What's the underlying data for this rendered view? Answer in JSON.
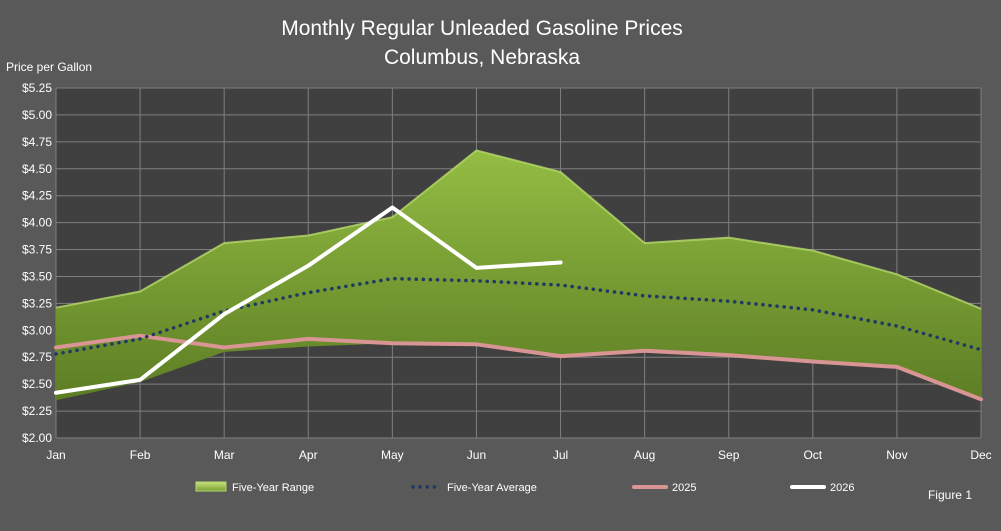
{
  "chart_data": {
    "type": "area",
    "title": "Monthly Regular Unleaded Gasoline Prices",
    "subtitle": "Columbus, Nebraska",
    "ylabel": "Price per Gallon",
    "xlabel": "",
    "categories": [
      "Jan",
      "Feb",
      "Mar",
      "Apr",
      "May",
      "Jun",
      "Jul",
      "Aug",
      "Sep",
      "Oct",
      "Nov",
      "Dec"
    ],
    "ylim": [
      2.0,
      5.25
    ],
    "yticks": [
      2.0,
      2.25,
      2.5,
      2.75,
      3.0,
      3.25,
      3.5,
      3.75,
      4.0,
      4.25,
      4.5,
      4.75,
      5.0,
      5.25
    ],
    "ytick_labels": [
      "$2.00",
      "$2.25",
      "$2.50",
      "$2.75",
      "$3.00",
      "$3.25",
      "$3.50",
      "$3.75",
      "$4.00",
      "$4.25",
      "$4.50",
      "$4.75",
      "$5.00",
      "$5.25"
    ],
    "grid": true,
    "legend_position": "bottom",
    "series": [
      {
        "name": "Five-Year Range",
        "style": "range-area",
        "color": "#8db33a",
        "low": [
          2.35,
          2.52,
          2.8,
          2.85,
          2.88,
          2.87,
          2.76,
          2.81,
          2.77,
          2.71,
          2.66,
          2.36
        ],
        "high": [
          3.21,
          3.36,
          3.81,
          3.88,
          4.05,
          4.67,
          4.47,
          3.81,
          3.86,
          3.74,
          3.52,
          3.2
        ]
      },
      {
        "name": "Five-Year Average",
        "style": "dotted",
        "color": "#1f3864",
        "values": [
          2.78,
          2.92,
          3.18,
          3.35,
          3.48,
          3.46,
          3.42,
          3.32,
          3.27,
          3.19,
          3.04,
          2.82
        ]
      },
      {
        "name": "2025",
        "style": "solid",
        "color": "#d99594",
        "values": [
          2.84,
          2.95,
          2.84,
          2.92,
          2.88,
          2.87,
          2.76,
          2.81,
          2.77,
          2.71,
          2.66,
          2.36
        ]
      },
      {
        "name": "2026",
        "style": "solid",
        "color": "#ffffff",
        "values": [
          2.42,
          2.54,
          3.15,
          3.6,
          4.14,
          3.58,
          3.63,
          null,
          null,
          null,
          null,
          null
        ]
      }
    ]
  },
  "figure_label": "Figure 1",
  "colors": {
    "background": "#595959",
    "plot_area": "#404040",
    "grid": "#7f7f7f",
    "range_fill": "#7a9e34",
    "range_edge": "#b6d96a",
    "average": "#1f3864",
    "series_2025": "#d99594",
    "series_2026": "#ffffff"
  }
}
